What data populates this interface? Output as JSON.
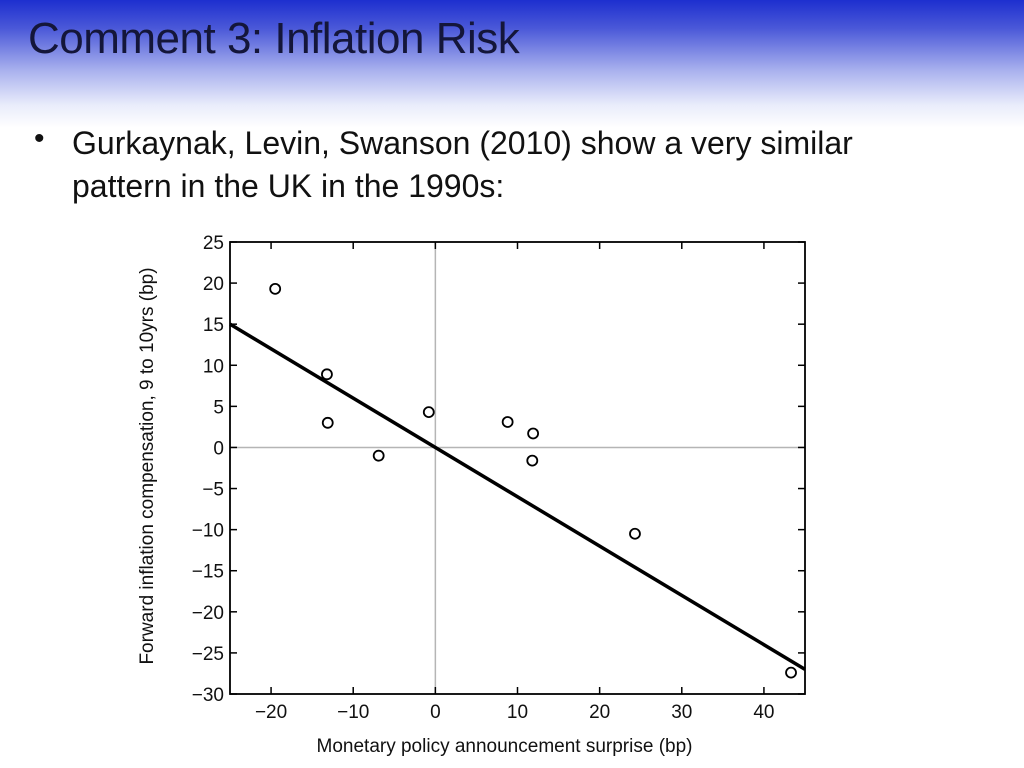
{
  "slide": {
    "title": "Comment 3:  Inflation Risk",
    "bullet_marker": "•",
    "bullet_text": "Gurkaynak, Levin, Swanson (2010) show a very similar pattern in the UK in the 1990s:"
  },
  "colors": {
    "title_band_top": "#1d2fcf",
    "title_text": "#14163a",
    "body_text": "#111111",
    "zero_line": "#b5b5b5"
  },
  "chart_data": {
    "type": "scatter",
    "title": "",
    "xlabel": "Monetary policy announcement surprise (bp)",
    "ylabel": "Forward inflation compensation, 9 to 10yrs (bp)",
    "xlim": [
      -25,
      45
    ],
    "ylim": [
      -30,
      25
    ],
    "xticks": [
      -20,
      -10,
      0,
      10,
      20,
      30,
      40
    ],
    "yticks": [
      25,
      20,
      15,
      10,
      5,
      0,
      -5,
      -10,
      -15,
      -20,
      -25,
      -30
    ],
    "tick_labels_x": [
      "−20",
      "−10",
      "0",
      "10",
      "20",
      "30",
      "40"
    ],
    "tick_labels_y": [
      "25",
      "20",
      "15",
      "10",
      "5",
      "0",
      "−5",
      "−10",
      "−15",
      "−20",
      "−25",
      "−30"
    ],
    "points": [
      {
        "x": -19.5,
        "y": 19.3
      },
      {
        "x": -13.2,
        "y": 8.9
      },
      {
        "x": -13.1,
        "y": 3.0
      },
      {
        "x": -6.9,
        "y": -1.0
      },
      {
        "x": -0.8,
        "y": 4.3
      },
      {
        "x": 8.8,
        "y": 3.1
      },
      {
        "x": 11.9,
        "y": 1.7
      },
      {
        "x": 11.8,
        "y": -1.6
      },
      {
        "x": 24.3,
        "y": -10.5
      },
      {
        "x": 43.3,
        "y": -27.4
      }
    ],
    "fit_line": {
      "intercept": 0,
      "slope": -0.6,
      "x_range": [
        -25,
        45
      ]
    },
    "zero_lines": true,
    "legend": "none"
  }
}
